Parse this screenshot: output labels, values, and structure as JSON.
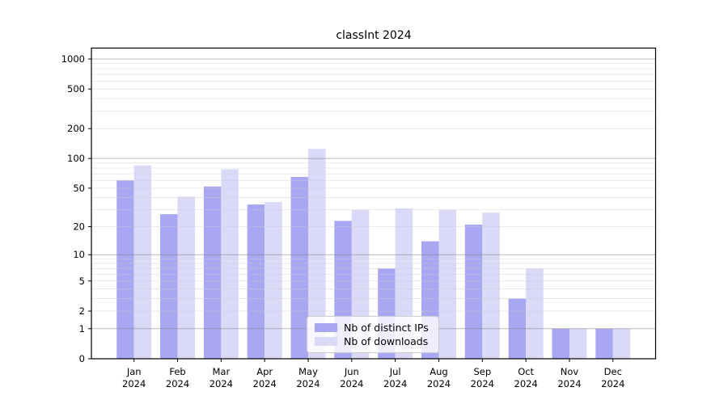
{
  "chart_data": {
    "type": "bar",
    "title": "classInt 2024",
    "scale": "log1p",
    "grid": true,
    "legend_position": "lower center",
    "categories": [
      "Jan",
      "Feb",
      "Mar",
      "Apr",
      "May",
      "Jun",
      "Jul",
      "Aug",
      "Sep",
      "Oct",
      "Nov",
      "Dec"
    ],
    "year_label": "2024",
    "series": [
      {
        "name": "Nb of distinct IPs",
        "color": "#a8a8f2",
        "values": [
          60,
          27,
          52,
          34,
          65,
          23,
          7,
          14,
          21,
          3,
          1,
          1
        ]
      },
      {
        "name": "Nb of downloads",
        "color": "#dadaf8",
        "values": [
          85,
          41,
          78,
          36,
          125,
          30,
          31,
          30,
          28,
          7,
          1,
          1
        ]
      }
    ],
    "yticks": [
      0,
      1,
      2,
      5,
      10,
      20,
      50,
      100,
      200,
      500,
      1000
    ],
    "ylim": [
      0,
      1000
    ],
    "xlabel": "",
    "ylabel": ""
  },
  "legend": {
    "items": [
      {
        "label": "Nb of distinct IPs"
      },
      {
        "label": "Nb of downloads"
      }
    ]
  }
}
